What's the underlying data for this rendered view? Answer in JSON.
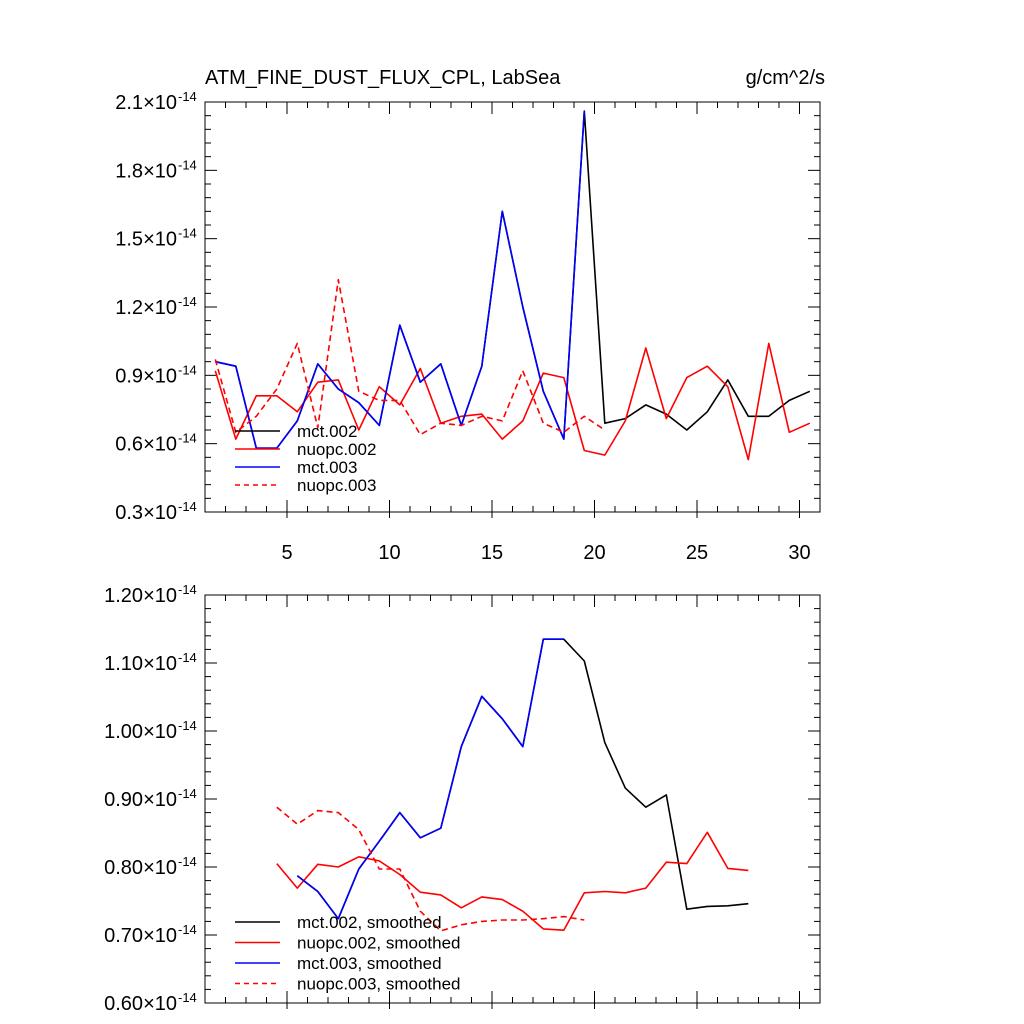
{
  "chart_data": [
    {
      "type": "line",
      "title": "ATM_FINE_DUST_FLUX_CPL, LabSea",
      "units": "g/cm^2/s",
      "xlim": [
        1,
        31
      ],
      "ylim": [
        0.3,
        2.1
      ],
      "x_ticks": [
        5,
        10,
        15,
        20,
        25,
        30
      ],
      "x_tick_labels": [
        "5",
        "10",
        "15",
        "20",
        "25",
        "30"
      ],
      "y_ticks": [
        0.3,
        0.6,
        0.9,
        1.2,
        1.5,
        1.8,
        2.1
      ],
      "y_tick_mantissas": [
        "0.3",
        "0.6",
        "0.9",
        "1.2",
        "1.5",
        "1.8",
        "2.1"
      ],
      "y_exponent": "-14",
      "legend_position": "bottom-left",
      "series": [
        {
          "name": "mct.002",
          "color": "#000000",
          "dash": "solid",
          "x": [
            1.5,
            2.5,
            3.5,
            4.5,
            5.5,
            6.5,
            7.5,
            8.5,
            9.5,
            10.5,
            11.5,
            12.5,
            13.5,
            14.5,
            15.5,
            16.5,
            17.5,
            18.5,
            19.5,
            20.5,
            21.5,
            22.5,
            23.5,
            24.5,
            25.5,
            26.5,
            27.5,
            28.5,
            29.5,
            30.5
          ],
          "values": [
            0.96,
            0.94,
            0.58,
            0.58,
            0.7,
            0.95,
            0.84,
            0.78,
            0.68,
            1.12,
            0.87,
            0.95,
            0.68,
            0.94,
            1.62,
            1.2,
            0.83,
            0.62,
            2.06,
            0.69,
            0.71,
            0.77,
            0.73,
            0.66,
            0.74,
            0.88,
            0.72,
            0.72,
            0.79,
            0.83
          ]
        },
        {
          "name": "nuopc.002",
          "color": "#ff0000",
          "dash": "solid",
          "x": [
            1.5,
            2.5,
            3.5,
            4.5,
            5.5,
            6.5,
            7.5,
            8.5,
            9.5,
            10.5,
            11.5,
            12.5,
            13.5,
            14.5,
            15.5,
            16.5,
            17.5,
            18.5,
            19.5,
            20.5,
            21.5,
            22.5,
            23.5,
            24.5,
            25.5,
            26.5,
            27.5,
            28.5,
            29.5,
            30.5
          ],
          "values": [
            0.92,
            0.62,
            0.81,
            0.81,
            0.74,
            0.87,
            0.88,
            0.66,
            0.85,
            0.77,
            0.93,
            0.69,
            0.72,
            0.73,
            0.62,
            0.7,
            0.91,
            0.89,
            0.57,
            0.55,
            0.7,
            1.02,
            0.71,
            0.89,
            0.94,
            0.85,
            0.53,
            1.04,
            0.65,
            0.69
          ]
        },
        {
          "name": "mct.003",
          "color": "#0000ff",
          "dash": "solid",
          "x": [
            1.5,
            2.5,
            3.5,
            4.5,
            5.5,
            6.5,
            7.5,
            8.5,
            9.5,
            10.5,
            11.5,
            12.5,
            13.5,
            14.5,
            15.5,
            16.5,
            17.5,
            18.5,
            19.5
          ],
          "values": [
            0.96,
            0.94,
            0.58,
            0.58,
            0.7,
            0.95,
            0.84,
            0.78,
            0.68,
            1.12,
            0.87,
            0.95,
            0.68,
            0.94,
            1.62,
            1.2,
            0.83,
            0.62,
            2.06
          ]
        },
        {
          "name": "nuopc.003",
          "color": "#ff0000",
          "dash": "dashed",
          "x": [
            1.5,
            2.5,
            3.5,
            4.5,
            5.5,
            6.5,
            7.5,
            8.5,
            9.5,
            10.5,
            11.5,
            12.5,
            13.5,
            14.5,
            15.5,
            16.5,
            17.5,
            18.5,
            19.5,
            20.5
          ],
          "values": [
            0.97,
            0.65,
            0.72,
            0.84,
            1.04,
            0.67,
            1.32,
            0.83,
            0.79,
            0.79,
            0.64,
            0.69,
            0.68,
            0.72,
            0.7,
            0.92,
            0.69,
            0.65,
            0.72,
            0.66
          ]
        }
      ]
    },
    {
      "type": "line",
      "title": "",
      "xlim": [
        1,
        31
      ],
      "ylim": [
        0.6,
        1.2
      ],
      "x_ticks": [
        5,
        10,
        15,
        20,
        25,
        30
      ],
      "y_ticks": [
        0.6,
        0.7,
        0.8,
        0.9,
        1.0,
        1.1,
        1.2
      ],
      "y_tick_mantissas": [
        "0.60",
        "0.70",
        "0.80",
        "0.90",
        "1.00",
        "1.10",
        "1.20"
      ],
      "y_exponent": "-14",
      "legend_position": "bottom-left",
      "series": [
        {
          "name": "mct.002, smoothed",
          "color": "#000000",
          "dash": "solid",
          "x": [
            5.5,
            6.5,
            7.5,
            8.5,
            9.5,
            10.5,
            11.5,
            12.5,
            13.5,
            14.5,
            15.5,
            16.5,
            17.5,
            18.5,
            19.5,
            20.5,
            21.5,
            22.5,
            23.5,
            24.5,
            25.5,
            26.5,
            27.5
          ],
          "values": [
            0.787,
            0.764,
            0.724,
            0.797,
            0.838,
            0.88,
            0.843,
            0.857,
            0.977,
            1.051,
            1.018,
            0.977,
            1.135,
            1.135,
            1.103,
            0.983,
            0.916,
            0.888,
            0.906,
            0.738,
            0.742,
            0.743,
            0.746
          ]
        },
        {
          "name": "nuopc.002, smoothed",
          "color": "#ff0000",
          "dash": "solid",
          "x": [
            4.5,
            5.5,
            6.5,
            7.5,
            8.5,
            9.5,
            10.5,
            11.5,
            12.5,
            13.5,
            14.5,
            15.5,
            16.5,
            17.5,
            18.5,
            19.5,
            20.5,
            21.5,
            22.5,
            23.5,
            24.5,
            25.5,
            26.5,
            27.5
          ],
          "values": [
            0.805,
            0.769,
            0.804,
            0.8,
            0.815,
            0.809,
            0.789,
            0.763,
            0.759,
            0.74,
            0.756,
            0.752,
            0.735,
            0.709,
            0.707,
            0.762,
            0.764,
            0.762,
            0.769,
            0.807,
            0.805,
            0.851,
            0.798,
            0.795
          ]
        },
        {
          "name": "mct.003, smoothed",
          "color": "#0000ff",
          "dash": "solid",
          "x": [
            5.5,
            6.5,
            7.5,
            8.5,
            9.5,
            10.5,
            11.5,
            12.5,
            13.5,
            14.5,
            15.5,
            16.5,
            17.5,
            18.5
          ],
          "values": [
            0.787,
            0.764,
            0.724,
            0.797,
            0.838,
            0.88,
            0.843,
            0.857,
            0.977,
            1.051,
            1.018,
            0.977,
            1.135,
            1.135
          ]
        },
        {
          "name": "nuopc.003, smoothed",
          "color": "#ff0000",
          "dash": "dashed",
          "x": [
            4.5,
            5.5,
            6.5,
            7.5,
            8.5,
            9.5,
            10.5,
            11.5,
            12.5,
            13.5,
            14.5,
            15.5,
            16.5,
            17.5,
            18.5,
            19.5
          ],
          "values": [
            0.888,
            0.863,
            0.883,
            0.88,
            0.855,
            0.797,
            0.797,
            0.735,
            0.706,
            0.715,
            0.72,
            0.722,
            0.722,
            0.724,
            0.727,
            0.722
          ]
        }
      ]
    }
  ]
}
